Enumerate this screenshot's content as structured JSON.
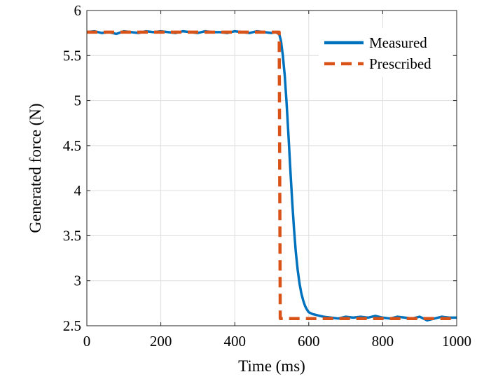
{
  "chart_data": {
    "type": "line",
    "title": "",
    "xlabel": "Time (ms)",
    "ylabel": "Generated force (N)",
    "xlim": [
      0,
      1000
    ],
    "ylim": [
      2.5,
      6
    ],
    "xticks": [
      0,
      200,
      400,
      600,
      800,
      1000
    ],
    "yticks": [
      2.5,
      3,
      3.5,
      4,
      4.5,
      5,
      5.5,
      6
    ],
    "xtick_labels": [
      "0",
      "200",
      "400",
      "600",
      "800",
      "1000"
    ],
    "ytick_labels": [
      "2.5",
      "3",
      "3.5",
      "4",
      "4.5",
      "5",
      "5.5",
      "6"
    ],
    "grid": true,
    "legend_position": "top-right",
    "series": [
      {
        "name": "Measured",
        "color": "#0072BD",
        "style": "solid",
        "x": [
          0,
          20,
          40,
          60,
          80,
          100,
          120,
          140,
          160,
          180,
          200,
          220,
          240,
          260,
          280,
          300,
          320,
          340,
          360,
          380,
          400,
          420,
          440,
          460,
          480,
          500,
          510,
          520,
          525,
          530,
          535,
          540,
          545,
          550,
          555,
          560,
          565,
          570,
          575,
          580,
          585,
          590,
          595,
          600,
          610,
          620,
          630,
          640,
          660,
          680,
          700,
          720,
          740,
          760,
          780,
          800,
          820,
          840,
          860,
          880,
          900,
          920,
          940,
          960,
          980,
          1000
        ],
        "y": [
          5.76,
          5.77,
          5.75,
          5.76,
          5.74,
          5.77,
          5.76,
          5.75,
          5.77,
          5.76,
          5.77,
          5.76,
          5.75,
          5.77,
          5.76,
          5.75,
          5.77,
          5.76,
          5.76,
          5.75,
          5.77,
          5.76,
          5.75,
          5.77,
          5.76,
          5.75,
          5.76,
          5.74,
          5.66,
          5.5,
          5.28,
          4.98,
          4.62,
          4.25,
          3.9,
          3.58,
          3.32,
          3.12,
          2.97,
          2.86,
          2.78,
          2.72,
          2.68,
          2.65,
          2.63,
          2.62,
          2.61,
          2.6,
          2.59,
          2.58,
          2.6,
          2.59,
          2.6,
          2.59,
          2.61,
          2.59,
          2.58,
          2.6,
          2.59,
          2.58,
          2.6,
          2.56,
          2.58,
          2.6,
          2.59,
          2.59
        ]
      },
      {
        "name": "Prescribed",
        "color": "#D95319",
        "style": "dashed",
        "x": [
          0,
          520,
          523,
          1000
        ],
        "y": [
          5.76,
          5.76,
          2.58,
          2.58
        ]
      }
    ]
  }
}
